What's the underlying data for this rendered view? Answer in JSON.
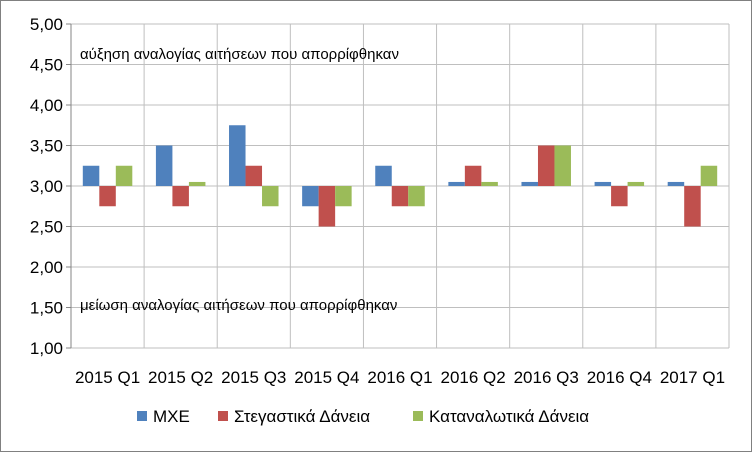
{
  "chart_data": {
    "type": "bar",
    "categories": [
      "2015 Q1",
      "2015 Q2",
      "2015 Q3",
      "2015 Q4",
      "2016 Q1",
      "2016 Q2",
      "2016 Q3",
      "2016 Q4",
      "2017 Q1"
    ],
    "series": [
      {
        "name": "ΜΧΕ",
        "color": "#4F81BD",
        "values": [
          3.25,
          3.5,
          3.75,
          2.75,
          3.25,
          3.05,
          3.05,
          3.05,
          3.05
        ]
      },
      {
        "name": "Στεγαστικά Δάνεια",
        "color": "#C0504D",
        "values": [
          2.75,
          2.75,
          3.25,
          2.5,
          2.75,
          3.25,
          3.5,
          2.75,
          2.5
        ]
      },
      {
        "name": "Καταναλωτικά Δάνεια",
        "color": "#9BBB59",
        "values": [
          3.25,
          3.05,
          2.75,
          2.75,
          2.75,
          3.05,
          3.5,
          3.05,
          3.25
        ]
      }
    ],
    "baseline": 3.0,
    "ylim": [
      1.0,
      5.0
    ],
    "yticks": [
      "1,00",
      "1,50",
      "2,00",
      "2,50",
      "3,00",
      "3,50",
      "4,00",
      "4,50",
      "5,00"
    ],
    "grid": true,
    "legend_position": "bottom",
    "annotations": {
      "top": "αύξηση αναλογίας αιτήσεων που απορρίφθηκαν",
      "bottom": "μείωση αναλογίας αιτήσεων που απορρίφθηκαν"
    }
  }
}
